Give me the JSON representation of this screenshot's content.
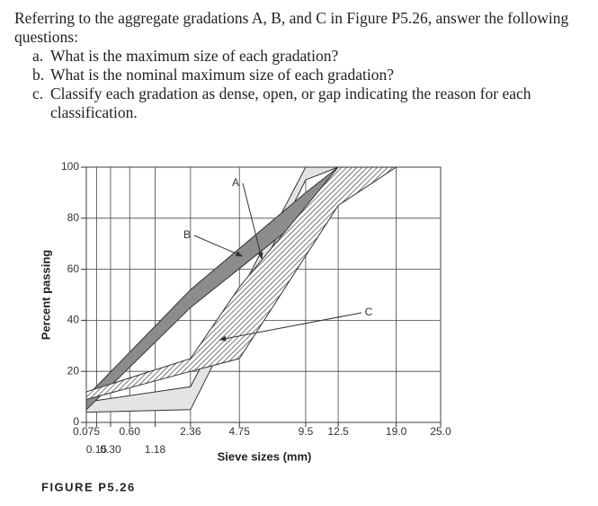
{
  "question": {
    "intro": "Referring to the aggregate gradations A, B, and C in Figure P5.26, answer the following questions:",
    "items": [
      {
        "marker": "a.",
        "text": "What is the maximum size of each gradation?"
      },
      {
        "marker": "b.",
        "text": "What is the nominal maximum size of each gradation?"
      },
      {
        "marker": "c.",
        "text": "Classify each gradation as dense, open, or gap indicating the reason for each classification."
      }
    ]
  },
  "figure_caption": "FIGURE P5.26",
  "chart_data": {
    "type": "band",
    "ylabel": "Percent passing",
    "xlabel": "Sieve sizes (mm)",
    "ylim": [
      0,
      100
    ],
    "yticks": [
      0,
      20,
      40,
      60,
      80,
      100
    ],
    "xlim": [
      0.075,
      25
    ],
    "xticks": [
      0.075,
      0.15,
      {
        "value": 0.3,
        "label": "0.30"
      },
      {
        "value": 0.6,
        "label": "0.60"
      },
      1.18,
      2.36,
      4.75,
      9.5,
      12.5,
      {
        "value": 19,
        "label": "19.0"
      },
      {
        "value": 25,
        "label": "25.0"
      }
    ],
    "grid": true,
    "series": [
      {
        "name": "A",
        "color": "#e4e4e4",
        "x": [
          0.075,
          2.36,
          9.5,
          12.5
        ],
        "upper": [
          8,
          14,
          100,
          100
        ],
        "lower": [
          4,
          5,
          95,
          100
        ]
      },
      {
        "name": "B",
        "color": "#8c8c8c",
        "x": [
          0.075,
          2.36,
          9.5,
          12.5,
          19
        ],
        "upper": [
          10,
          52,
          90,
          100,
          100
        ],
        "lower": [
          5,
          45,
          81,
          95,
          100
        ]
      },
      {
        "name": "C",
        "color": "hatch",
        "x": [
          0.075,
          2.36,
          4.75,
          12.5,
          19
        ],
        "upper": [
          12,
          25,
          53,
          100,
          100
        ],
        "lower": [
          9,
          20,
          25,
          85,
          100
        ]
      }
    ]
  }
}
